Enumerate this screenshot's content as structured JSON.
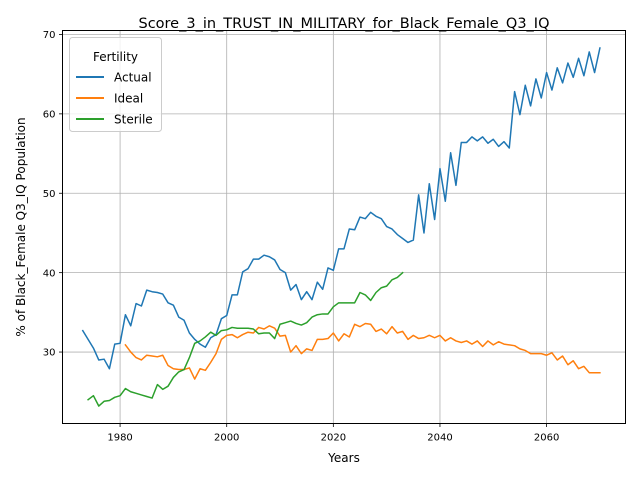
{
  "chart_data": {
    "type": "line",
    "title": "Score_3_in_TRUST_IN_MILITARY_for_Black_Female_Q3_IQ",
    "xlabel": "Years",
    "ylabel": "% of Black_Female Q3_IQ Population",
    "xlim": [
      1969.2,
      2074.8
    ],
    "ylim": [
      21,
      70.5
    ],
    "xticks": [
      1980,
      2000,
      2020,
      2040,
      2060
    ],
    "yticks": [
      30,
      40,
      50,
      60,
      70
    ],
    "grid": true,
    "legend": {
      "title": "Fertility",
      "placement": "upper-left"
    },
    "series": [
      {
        "name": "Actual",
        "color": "#1f77b4",
        "x": [
          1973,
          1974,
          1975,
          1976,
          1977,
          1978,
          1979,
          1980,
          1981,
          1982,
          1983,
          1984,
          1985,
          1986,
          1987,
          1988,
          1989,
          1990,
          1991,
          1992,
          1993,
          1994,
          1995,
          1996,
          1997,
          1998,
          1999,
          2000,
          2001,
          2002,
          2003,
          2004,
          2005,
          2006,
          2007,
          2008,
          2009,
          2010,
          2011,
          2012,
          2013,
          2014,
          2015,
          2016,
          2017,
          2018,
          2019,
          2020,
          2021,
          2022,
          2023,
          2024,
          2025,
          2026,
          2027,
          2028,
          2029,
          2030,
          2031,
          2032,
          2033,
          2034,
          2035,
          2036,
          2037,
          2038,
          2039,
          2040,
          2041,
          2042,
          2043,
          2044,
          2045,
          2046,
          2047,
          2048,
          2049,
          2050,
          2051,
          2052,
          2053,
          2054,
          2055,
          2056,
          2057,
          2058,
          2059,
          2060,
          2061,
          2062,
          2063,
          2064,
          2065,
          2066,
          2067,
          2068,
          2069,
          2070
        ],
        "values": [
          32.7,
          31.6,
          30.5,
          29.0,
          29.1,
          27.9,
          31.0,
          31.1,
          34.7,
          33.3,
          36.1,
          35.8,
          37.8,
          37.6,
          37.5,
          37.3,
          36.2,
          35.9,
          34.4,
          34.0,
          32.4,
          31.6,
          31.0,
          30.6,
          31.8,
          32.2,
          34.2,
          34.6,
          37.2,
          37.2,
          40.1,
          40.5,
          41.7,
          41.7,
          42.2,
          42.0,
          41.6,
          40.4,
          40.0,
          37.8,
          38.5,
          36.6,
          37.6,
          36.6,
          38.8,
          37.9,
          40.6,
          40.3,
          43.0,
          43.0,
          45.5,
          45.4,
          47.0,
          46.8,
          47.6,
          47.1,
          46.8,
          45.8,
          45.5,
          44.8,
          44.3,
          43.8,
          44.1,
          49.8,
          45.0,
          51.2,
          46.7,
          53.1,
          49.0,
          55.1,
          51.0,
          56.4,
          56.4,
          57.1,
          56.6,
          57.1,
          56.3,
          56.8,
          55.9,
          56.5,
          55.7,
          62.8,
          59.9,
          63.6,
          61.0,
          64.4,
          62.0,
          65.2,
          63.0,
          65.8,
          63.9,
          66.4,
          64.6,
          67.0,
          64.8,
          67.8,
          65.2,
          68.3
        ]
      },
      {
        "name": "Ideal",
        "color": "#ff7f0e",
        "x": [
          1981,
          1982,
          1983,
          1984,
          1985,
          1986,
          1987,
          1988,
          1989,
          1990,
          1991,
          1992,
          1993,
          1994,
          1995,
          1996,
          1997,
          1998,
          1999,
          2000,
          2001,
          2002,
          2003,
          2004,
          2005,
          2006,
          2007,
          2008,
          2009,
          2010,
          2011,
          2012,
          2013,
          2014,
          2015,
          2016,
          2017,
          2018,
          2019,
          2020,
          2021,
          2022,
          2023,
          2024,
          2025,
          2026,
          2027,
          2028,
          2029,
          2030,
          2031,
          2032,
          2033,
          2034,
          2035,
          2036,
          2037,
          2038,
          2039,
          2040,
          2041,
          2042,
          2043,
          2044,
          2045,
          2046,
          2047,
          2048,
          2049,
          2050,
          2051,
          2052,
          2053,
          2054,
          2055,
          2056,
          2057,
          2058,
          2059,
          2060,
          2061,
          2062,
          2063,
          2064,
          2065,
          2066,
          2067,
          2068,
          2069,
          2070
        ],
        "values": [
          30.9,
          30.0,
          29.3,
          29.0,
          29.6,
          29.5,
          29.4,
          29.6,
          28.3,
          27.9,
          27.8,
          27.8,
          28.0,
          26.6,
          27.9,
          27.7,
          28.7,
          29.8,
          31.6,
          32.1,
          32.2,
          31.8,
          32.2,
          32.5,
          32.4,
          33.1,
          32.9,
          33.3,
          33.0,
          32.0,
          32.1,
          30.0,
          30.8,
          29.8,
          30.4,
          30.2,
          31.6,
          31.6,
          31.7,
          32.4,
          31.4,
          32.3,
          31.9,
          33.5,
          33.2,
          33.6,
          33.5,
          32.6,
          32.9,
          32.3,
          33.2,
          32.4,
          32.6,
          31.6,
          32.1,
          31.7,
          31.8,
          32.1,
          31.8,
          32.1,
          31.4,
          31.8,
          31.4,
          31.2,
          31.4,
          31.0,
          31.4,
          30.7,
          31.4,
          30.9,
          31.3,
          31.0,
          30.9,
          30.8,
          30.4,
          30.2,
          29.8,
          29.8,
          29.8,
          29.6,
          29.9,
          29.0,
          29.5,
          28.4,
          28.9,
          27.9,
          28.2,
          27.4,
          27.4,
          27.4
        ]
      },
      {
        "name": "Sterile",
        "color": "#2ca02c",
        "x": [
          1974,
          1975,
          1976,
          1977,
          1978,
          1979,
          1980,
          1981,
          1982,
          1983,
          1984,
          1985,
          1986,
          1987,
          1988,
          1989,
          1990,
          1991,
          1992,
          1993,
          1994,
          1995,
          1996,
          1997,
          1998,
          1999,
          2000,
          2001,
          2002,
          2003,
          2004,
          2005,
          2006,
          2007,
          2008,
          2009,
          2010,
          2011,
          2012,
          2013,
          2014,
          2015,
          2016,
          2017,
          2018,
          2019,
          2020,
          2021,
          2022,
          2023,
          2024,
          2025,
          2026,
          2027,
          2028,
          2029,
          2030,
          2031,
          2032,
          2033
        ],
        "values": [
          24.0,
          24.5,
          23.2,
          23.8,
          23.9,
          24.3,
          24.5,
          25.4,
          25.0,
          24.8,
          24.6,
          24.4,
          24.2,
          25.9,
          25.3,
          25.7,
          26.8,
          27.5,
          27.8,
          29.3,
          31.1,
          31.4,
          31.9,
          32.5,
          32.1,
          32.7,
          32.8,
          33.1,
          33.0,
          33.0,
          33.0,
          32.9,
          32.3,
          32.4,
          32.4,
          31.7,
          33.5,
          33.7,
          33.9,
          33.6,
          33.4,
          33.7,
          34.4,
          34.7,
          34.8,
          34.8,
          35.7,
          36.2,
          36.2,
          36.2,
          36.2,
          37.5,
          37.2,
          36.5,
          37.5,
          38.1,
          38.3,
          39.1,
          39.4,
          40.0
        ]
      }
    ]
  }
}
